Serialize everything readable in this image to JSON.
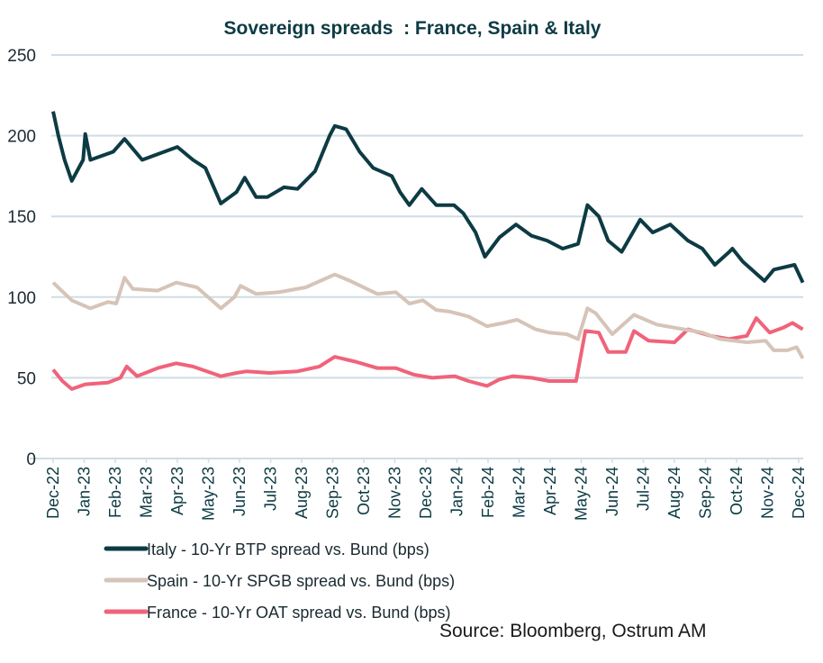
{
  "chart_data": {
    "type": "line",
    "title": "Sovereign spreads  : France, Spain & Italy",
    "xlabel": "",
    "ylabel": "",
    "ylim": [
      0,
      250
    ],
    "yticks": [
      0,
      50,
      100,
      150,
      200,
      250
    ],
    "xticks": [
      "Dec-22",
      "Jan-23",
      "Feb-23",
      "Mar-23",
      "Apr-23",
      "May-23",
      "Jun-23",
      "Jul-23",
      "Aug-23",
      "Sep-23",
      "Oct-23",
      "Nov-23",
      "Dec-23",
      "Jan-24",
      "Feb-24",
      "Mar-24",
      "Apr-24",
      "May-24",
      "Jun-24",
      "Jul-24",
      "Aug-24",
      "Sep-24",
      "Oct-24",
      "Nov-24",
      "Dec-24"
    ],
    "grid": true,
    "legend_position": "bottom-left",
    "source": "Source: Bloomberg, Ostrum AM",
    "series": [
      {
        "name": "Italy -  10-Yr BTP spread vs. Bund   (bps)",
        "color": "#0d3b44",
        "x": [
          "2022-12-01",
          "2022-12-06",
          "2022-12-12",
          "2022-12-19",
          "2022-12-30",
          "2023-01-02",
          "2023-01-07",
          "2023-01-29",
          "2023-02-10",
          "2023-02-27",
          "2023-04-01",
          "2023-04-16",
          "2023-04-28",
          "2023-05-13",
          "2023-05-28",
          "2023-06-06",
          "2023-06-17",
          "2023-06-28",
          "2023-07-14",
          "2023-07-27",
          "2023-08-14",
          "2023-08-28",
          "2023-09-03",
          "2023-09-14",
          "2023-09-27",
          "2023-10-10",
          "2023-10-28",
          "2023-11-06",
          "2023-11-15",
          "2023-11-27",
          "2023-12-11",
          "2023-12-28",
          "2024-01-07",
          "2024-01-19",
          "2024-01-28",
          "2024-02-12",
          "2024-02-28",
          "2024-03-13",
          "2024-03-28",
          "2024-04-13",
          "2024-04-28",
          "2024-05-07",
          "2024-05-18",
          "2024-05-27",
          "2024-06-10",
          "2024-06-28",
          "2024-07-10",
          "2024-07-27",
          "2024-08-14",
          "2024-08-28",
          "2024-09-10",
          "2024-09-24",
          "2024-09-27",
          "2024-10-07",
          "2024-10-28",
          "2024-11-07",
          "2024-11-27",
          "2024-12-05"
        ],
        "values": [
          215,
          200,
          185,
          172,
          185,
          201,
          185,
          190,
          198,
          185,
          193,
          185,
          180,
          158,
          165,
          174,
          162,
          162,
          168,
          167,
          178,
          200,
          206,
          204,
          190,
          180,
          175,
          165,
          157,
          167,
          157,
          157,
          152,
          140,
          125,
          137,
          145,
          138,
          135,
          130,
          133,
          157,
          150,
          135,
          128,
          148,
          140,
          145,
          135,
          130,
          120,
          128,
          130,
          122,
          110,
          117,
          120,
          109
        ]
      },
      {
        "name": "Spain -  10-Yr SPGB spread vs. Bund   (bps)",
        "color": "#d6c4b8",
        "x": [
          "2022-12-01",
          "2022-12-19",
          "2023-01-07",
          "2023-01-24",
          "2023-02-02",
          "2023-02-10",
          "2023-02-18",
          "2023-03-12",
          "2023-03-30",
          "2023-04-20",
          "2023-05-13",
          "2023-05-26",
          "2023-06-02",
          "2023-06-17",
          "2023-07-09",
          "2023-08-05",
          "2023-09-03",
          "2023-09-18",
          "2023-10-14",
          "2023-11-02",
          "2023-11-15",
          "2023-11-28",
          "2023-12-11",
          "2023-12-24",
          "2024-01-12",
          "2024-01-30",
          "2024-02-16",
          "2024-02-29",
          "2024-03-17",
          "2024-03-30",
          "2024-04-17",
          "2024-04-28",
          "2024-05-07",
          "2024-05-15",
          "2024-06-01",
          "2024-06-22",
          "2024-07-14",
          "2024-08-10",
          "2024-08-28",
          "2024-09-15",
          "2024-10-11",
          "2024-10-29",
          "2024-11-07",
          "2024-11-20",
          "2024-11-29",
          "2024-12-05"
        ],
        "values": [
          109,
          98,
          93,
          97,
          96,
          112,
          105,
          104,
          109,
          106,
          93,
          100,
          107,
          102,
          103,
          106,
          114,
          110,
          102,
          103,
          96,
          98,
          92,
          91,
          88,
          82,
          84,
          86,
          80,
          78,
          77,
          74,
          93,
          90,
          77,
          89,
          83,
          80,
          78,
          74,
          72,
          73,
          67,
          67,
          69,
          62
        ]
      },
      {
        "name": "France -  10-Yr OAT spread vs. Bund   (bps)",
        "color": "#f0637a",
        "x": [
          "2022-12-01",
          "2022-12-10",
          "2022-12-19",
          "2023-01-02",
          "2023-01-24",
          "2023-02-06",
          "2023-02-12",
          "2023-02-22",
          "2023-03-12",
          "2023-03-30",
          "2023-04-16",
          "2023-05-13",
          "2023-05-28",
          "2023-06-08",
          "2023-06-30",
          "2023-07-27",
          "2023-08-18",
          "2023-09-03",
          "2023-09-23",
          "2023-10-14",
          "2023-11-02",
          "2023-11-19",
          "2023-12-07",
          "2023-12-29",
          "2024-01-12",
          "2024-01-30",
          "2024-02-12",
          "2024-02-25",
          "2024-03-13",
          "2024-03-30",
          "2024-04-17",
          "2024-04-26",
          "2024-05-05",
          "2024-05-18",
          "2024-05-27",
          "2024-06-14",
          "2024-06-22",
          "2024-07-06",
          "2024-08-01",
          "2024-08-14",
          "2024-09-06",
          "2024-09-24",
          "2024-10-11",
          "2024-10-20",
          "2024-11-03",
          "2024-11-16",
          "2024-11-25",
          "2024-12-05"
        ],
        "values": [
          55,
          48,
          43,
          46,
          47,
          50,
          57,
          51,
          56,
          59,
          57,
          51,
          53,
          54,
          53,
          54,
          57,
          63,
          60,
          56,
          56,
          52,
          50,
          51,
          48,
          45,
          49,
          51,
          50,
          48,
          48,
          48,
          79,
          78,
          66,
          66,
          79,
          73,
          72,
          80,
          76,
          74,
          76,
          87,
          78,
          81,
          84,
          80
        ]
      }
    ]
  }
}
